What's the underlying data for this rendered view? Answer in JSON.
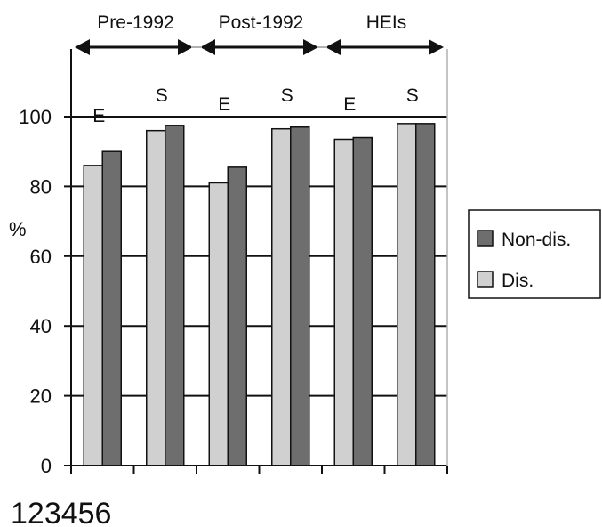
{
  "chart_data": {
    "type": "bar",
    "title": "",
    "xlabel": "",
    "ylabel": "%",
    "ylim": [
      0,
      100
    ],
    "yticks": [
      0,
      20,
      40,
      60,
      80,
      100
    ],
    "grid": true,
    "legend_position": "right",
    "categories": [
      "1",
      "2",
      "3",
      "4",
      "5",
      "6"
    ],
    "category_labels_text": "123456",
    "groups": [
      {
        "label": "Pre-1992",
        "categories": [
          "1",
          "2"
        ]
      },
      {
        "label": "Post-1992",
        "categories": [
          "3",
          "4"
        ]
      },
      {
        "label": "HEIs",
        "categories": [
          "5",
          "6"
        ]
      }
    ],
    "annotations": [
      "E",
      "S",
      "E",
      "S",
      "E",
      "S"
    ],
    "series": [
      {
        "name": "Dis.",
        "values": [
          86,
          96,
          81,
          96.5,
          93.5,
          98
        ]
      },
      {
        "name": "Non-dis.",
        "values": [
          90,
          97.5,
          85.5,
          97,
          94,
          98
        ]
      }
    ],
    "colors": {
      "Dis.": "#d0d0d0",
      "Non-dis.": "#6e6e6e",
      "grid": "#111111",
      "group_divider": "#b0b0b0"
    }
  }
}
